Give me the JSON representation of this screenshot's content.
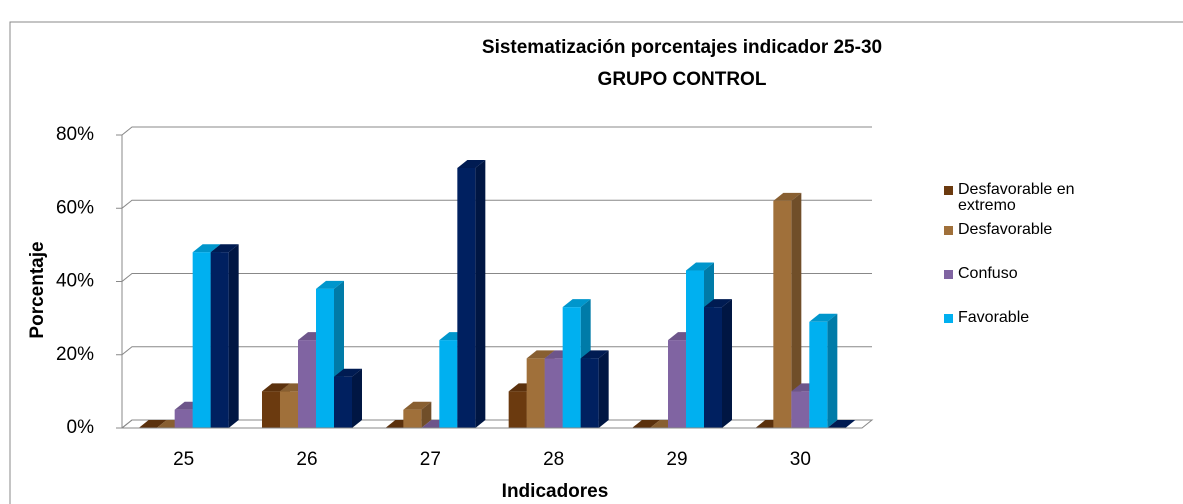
{
  "chart_data": {
    "type": "bar3d",
    "title": "Sistematización porcentajes indicador 25-30",
    "subtitle": "GRUPO CONTROL",
    "x_label": "Indicadores",
    "y_label": "Porcentaje",
    "categories": [
      "25",
      "26",
      "27",
      "28",
      "29",
      "30"
    ],
    "series": [
      {
        "name": "Desfavorable en extremo",
        "color": "#6b3a0f",
        "values": [
          0,
          10,
          0,
          10,
          0,
          0
        ]
      },
      {
        "name": "Desfavorable",
        "color": "#a0703a",
        "values": [
          0,
          10,
          5,
          19,
          0,
          62
        ]
      },
      {
        "name": "Confuso",
        "color": "#8064a2",
        "values": [
          5,
          24,
          0,
          19,
          24,
          10
        ]
      },
      {
        "name": "Favorable",
        "color": "#00b0f0",
        "values": [
          48,
          38,
          24,
          33,
          43,
          29
        ]
      },
      {
        "color": "#002060",
        "values": [
          48,
          14,
          71,
          19,
          33,
          0
        ]
      }
    ],
    "ylim": [
      0,
      80
    ],
    "yticks": [
      {
        "value": 0,
        "label": "0%"
      },
      {
        "value": 20,
        "label": "20%"
      },
      {
        "value": 40,
        "label": "40%"
      },
      {
        "value": 60,
        "label": "60%"
      },
      {
        "value": 80,
        "label": "80%"
      }
    ],
    "grid": true,
    "legend": "right"
  }
}
